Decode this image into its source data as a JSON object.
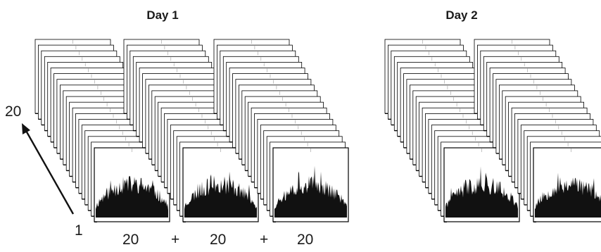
{
  "days": [
    {
      "title": "Day 1",
      "stacks": 3
    },
    {
      "title": "Day 2",
      "stacks": 2
    }
  ],
  "frames_per_stack": 20,
  "axis": {
    "start_label": "1",
    "end_label": "20"
  },
  "sum_row": [
    "20",
    "+",
    "20",
    "+",
    "20"
  ],
  "colors": {
    "frame_stroke": "#000000",
    "frame_fill": "#ffffff",
    "signal": "#111111",
    "arrow": "#111111"
  }
}
